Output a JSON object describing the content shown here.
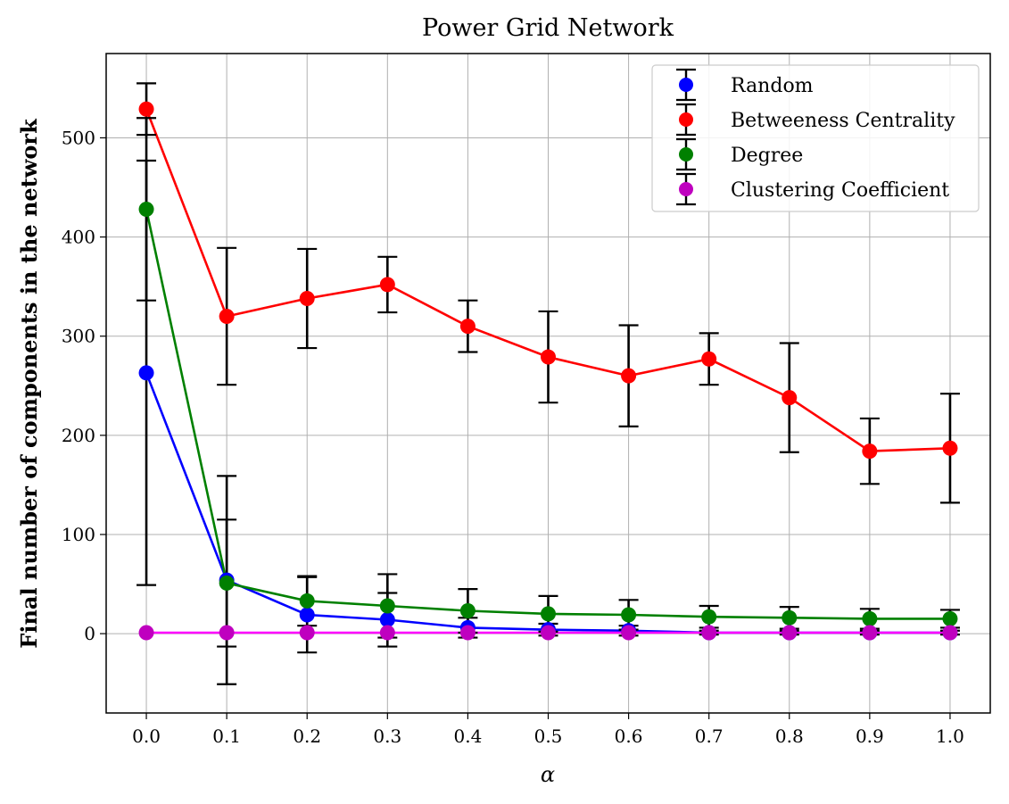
{
  "chart_data": {
    "type": "line",
    "title": "Power Grid Network",
    "xlabel": "α",
    "ylabel": "Final number of components in the network",
    "x": [
      0.0,
      0.1,
      0.2,
      0.3,
      0.4,
      0.5,
      0.6,
      0.7,
      0.8,
      0.9,
      1.0
    ],
    "x_tick_labels": [
      "0.0",
      "0.1",
      "0.2",
      "0.3",
      "0.4",
      "0.5",
      "0.6",
      "0.7",
      "0.8",
      "0.9",
      "1.0"
    ],
    "y_ticks": [
      0,
      100,
      200,
      300,
      400,
      500
    ],
    "xlim": [
      -0.05,
      1.05
    ],
    "ylim": [
      -80,
      585
    ],
    "grid": true,
    "legend_position": "top-right",
    "error_bar_color": "#000000",
    "series": [
      {
        "name": "Random",
        "color": "#0000ff",
        "values": [
          263,
          54,
          19,
          14,
          6,
          4,
          3,
          1,
          1,
          1,
          1
        ],
        "errors": [
          214,
          105,
          38,
          27,
          10,
          6,
          5,
          2,
          2,
          2,
          2
        ]
      },
      {
        "name": "Betweeness Centrality",
        "color": "#ff0000",
        "values": [
          529,
          320,
          338,
          352,
          310,
          279,
          260,
          277,
          238,
          184,
          187
        ],
        "errors": [
          26,
          69,
          50,
          28,
          26,
          46,
          51,
          26,
          55,
          33,
          55
        ]
      },
      {
        "name": "Degree",
        "color": "#008000",
        "values": [
          428,
          51,
          33,
          28,
          23,
          20,
          19,
          17,
          16,
          15,
          15
        ],
        "errors": [
          92,
          64,
          25,
          32,
          22,
          18,
          15,
          11,
          11,
          10,
          9
        ]
      },
      {
        "name": "Clustering Coefficient",
        "color": "#ff00ff",
        "marker_color": "#bf00bf",
        "values": [
          1,
          1,
          1,
          1,
          1,
          1,
          1,
          1,
          1,
          1,
          1
        ],
        "errors": [
          0,
          0,
          0,
          0,
          0,
          0,
          0,
          0,
          0,
          0,
          0
        ]
      }
    ]
  }
}
